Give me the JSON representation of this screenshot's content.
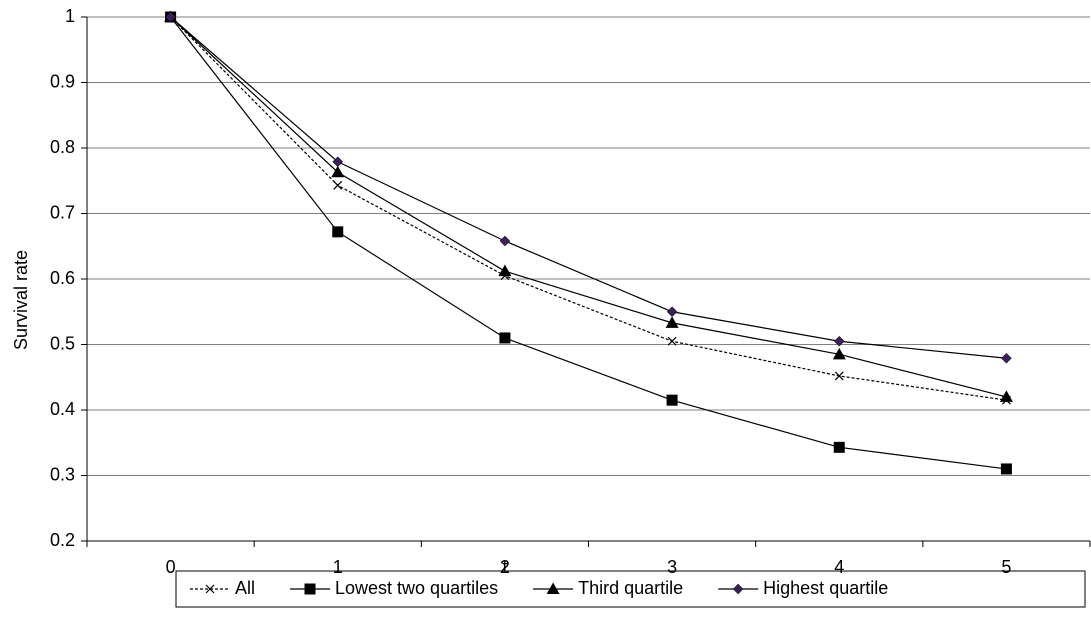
{
  "chart_data": {
    "type": "line",
    "x_label": "t",
    "y_label": "Survival rate",
    "categories": [
      "0",
      "1",
      "2",
      "3",
      "4",
      "5"
    ],
    "series": [
      {
        "name": "All",
        "color": "#000000",
        "marker": "x",
        "dashed": true,
        "values": [
          1,
          0.743,
          0.605,
          0.505,
          0.452,
          0.415
        ]
      },
      {
        "name": "Lowest two quartiles",
        "color": "#000000",
        "marker": "square",
        "dashed": false,
        "values": [
          1,
          0.672,
          0.51,
          0.415,
          0.343,
          0.31
        ]
      },
      {
        "name": "Third quartile",
        "color": "#000000",
        "marker": "triangle",
        "dashed": false,
        "values": [
          1,
          0.763,
          0.612,
          0.533,
          0.485,
          0.42
        ]
      },
      {
        "name": "Highest quartile",
        "color": "#000000",
        "marker_color": "#3c1f5a",
        "marker": "diamond",
        "dashed": false,
        "values": [
          1,
          0.779,
          0.658,
          0.55,
          0.505,
          0.479
        ]
      }
    ],
    "ylim": [
      0.2,
      1
    ],
    "yticks": [
      0.2,
      0.3,
      0.4,
      0.5,
      0.6,
      0.7,
      0.8,
      0.9,
      1
    ],
    "grid": true,
    "legend": "bottom"
  }
}
